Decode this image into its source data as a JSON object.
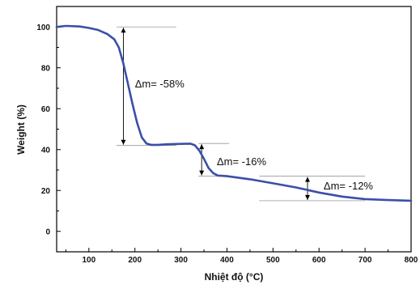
{
  "chart_data": {
    "type": "line",
    "xlabel": "Nhiệt độ (°C)",
    "ylabel": "Weight (%)",
    "xlim": [
      30,
      800
    ],
    "ylim": [
      -10,
      110
    ],
    "xticks": [
      "100",
      "200",
      "300",
      "400",
      "500",
      "600",
      "700",
      "800"
    ],
    "yticks": [
      "0",
      "20",
      "40",
      "60",
      "80",
      "100"
    ],
    "grid": false,
    "series_color": "#3a4fa8",
    "series": [
      {
        "x": [
          30,
          50,
          80,
          100,
          120,
          140,
          155,
          165,
          175,
          185,
          195,
          205,
          215,
          225,
          235,
          250,
          270,
          300,
          320,
          330,
          340,
          350,
          360,
          370,
          380,
          400,
          450,
          500,
          550,
          600,
          650,
          700,
          750,
          800
        ],
        "values": [
          100,
          100.5,
          100.2,
          99.5,
          98.5,
          96.5,
          94,
          90,
          82,
          72,
          62,
          53,
          46,
          43,
          42.3,
          42.3,
          42.6,
          42.8,
          42.9,
          42.2,
          39.5,
          35.5,
          31,
          28.5,
          27.3,
          27,
          25.5,
          23.5,
          21.5,
          19,
          17,
          15.8,
          15.3,
          15
        ]
      }
    ],
    "annotations": [
      {
        "text": "Δm= -58%",
        "x": 200,
        "y": 72,
        "from": 100,
        "to": 42,
        "ref_x": 175,
        "line_start": 160,
        "line_end": 290
      },
      {
        "text": "Δm= -16%",
        "x": 378,
        "y": 34,
        "from": 43,
        "to": 27,
        "ref_x": 345,
        "line_start": 338,
        "line_end": 405
      },
      {
        "text": "Δm= -12%",
        "x": 610,
        "y": 22,
        "from": 27,
        "to": 15,
        "ref_x": 575,
        "line_start": 470,
        "line_end": 700
      }
    ]
  }
}
